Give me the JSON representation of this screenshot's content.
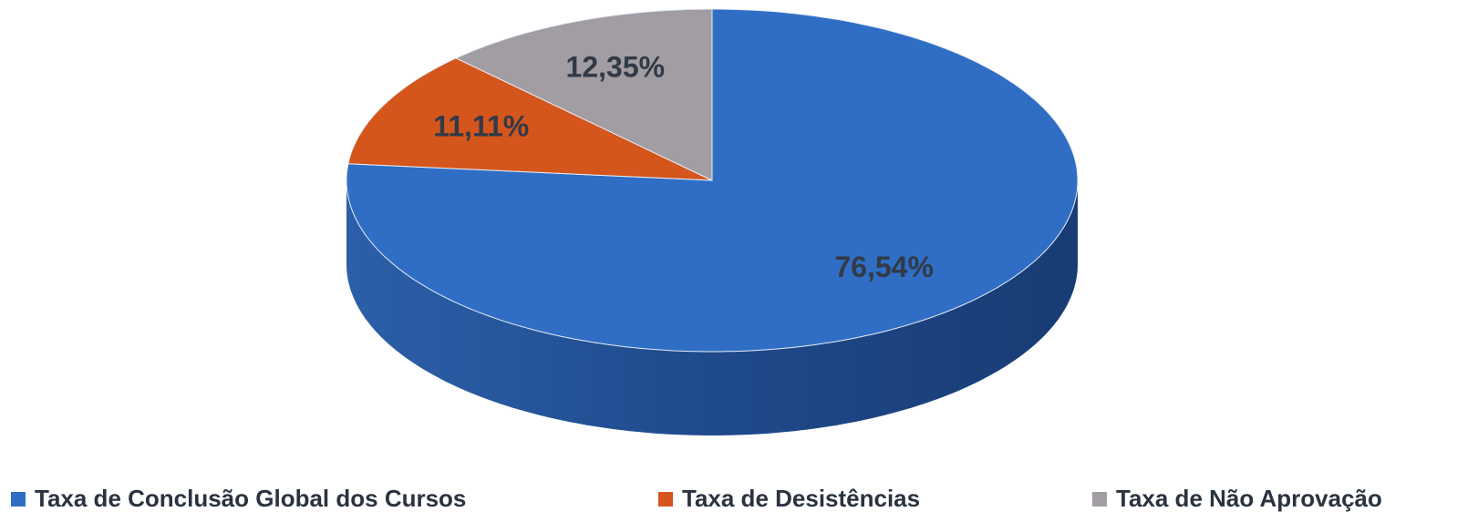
{
  "chart_data": {
    "type": "pie",
    "categories": [
      "Taxa de Conclusão Global dos Cursos",
      "Taxa de Desistências",
      "Taxa de Não Aprovação"
    ],
    "values": [
      76.54,
      11.11,
      12.35
    ],
    "value_labels": [
      "76,54%",
      "11,11%",
      "12,35%"
    ],
    "colors": [
      "#2f6ec4",
      "#d4561c",
      "#a29ca3"
    ],
    "legend": "bottom"
  }
}
